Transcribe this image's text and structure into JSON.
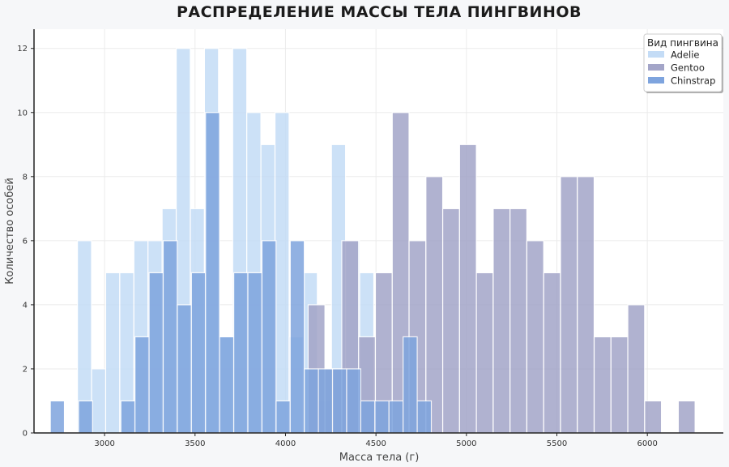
{
  "chart_data": {
    "type": "histogram",
    "title": "РАСПРЕДЕЛЕНИЕ МАССЫ ТЕЛА ПИНГВИНОВ",
    "xlabel": "Масса тела (г)",
    "ylabel": "Количество особей",
    "xlim": [
      2610,
      6420
    ],
    "ylim": [
      0,
      12.6
    ],
    "xticks": [
      3000,
      3500,
      4000,
      4500,
      5000,
      5500,
      6000
    ],
    "yticks": [
      0,
      2,
      4,
      6,
      8,
      10,
      12
    ],
    "grid": true,
    "legend": {
      "title": "Вид пингвина",
      "position": "top-right"
    },
    "series": [
      {
        "name": "Adelie",
        "color": "#c4dcf6",
        "bin_width": 78,
        "bin_starts": [
          2850,
          2928,
          3006,
          3084,
          3162,
          3240,
          3318,
          3396,
          3474,
          3552,
          3630,
          3708,
          3786,
          3864,
          3942,
          4020,
          4098,
          4176,
          4254,
          4332,
          4410
        ],
        "counts": [
          6,
          2,
          5,
          5,
          6,
          6,
          7,
          12,
          7,
          12,
          3,
          12,
          10,
          9,
          10,
          3,
          5,
          1,
          9,
          6,
          5
        ]
      },
      {
        "name": "Gentoo",
        "color": "#a3a5c8",
        "bin_width": 93,
        "bin_starts": [
          4125,
          4218,
          4311,
          4404,
          4497,
          4590,
          4683,
          4776,
          4869,
          4962,
          5055,
          5148,
          5241,
          5334,
          5427,
          5520,
          5613,
          5706,
          5799,
          5892,
          5985,
          6078,
          6171
        ],
        "counts": [
          4,
          2,
          6,
          3,
          5,
          10,
          6,
          8,
          7,
          9,
          5,
          7,
          7,
          6,
          5,
          8,
          8,
          3,
          3,
          4,
          1,
          0,
          1
        ]
      },
      {
        "name": "Chinstrap",
        "color": "#7ea4de",
        "bin_width": 78,
        "bin_starts": [
          2700,
          2778,
          2856,
          2934,
          3012,
          3090,
          3168,
          3246,
          3324,
          3402,
          3480,
          3558,
          3636,
          3714,
          3792,
          3870,
          3948,
          4026,
          4104,
          4182,
          4260,
          4338,
          4416,
          4494,
          4572,
          4650,
          4728
        ],
        "counts": [
          1,
          0,
          1,
          0,
          0,
          1,
          3,
          5,
          6,
          4,
          5,
          10,
          3,
          5,
          5,
          6,
          1,
          6,
          2,
          2,
          2,
          2,
          1,
          1,
          1,
          3,
          1
        ]
      }
    ]
  }
}
